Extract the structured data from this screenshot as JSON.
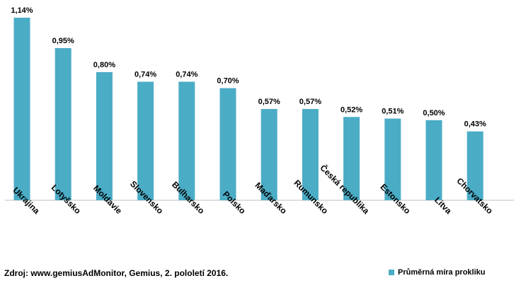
{
  "chart_data": {
    "type": "bar",
    "categories": [
      "Ukrajina",
      "Lotyšsko",
      "Moldavie",
      "Slovensko",
      "Bulharsko",
      "Polsko",
      "Maďarsko",
      "Rumunsko",
      "Česká republika",
      "Estonsko",
      "Litva",
      "Chorvatsko"
    ],
    "series": [
      {
        "name": "Průměrná míra prokliku",
        "values": [
          1.14,
          0.95,
          0.8,
          0.74,
          0.74,
          0.7,
          0.57,
          0.57,
          0.52,
          0.51,
          0.5,
          0.43
        ],
        "labels": [
          "1,14%",
          "0,95%",
          "0,80%",
          "0,74%",
          "0,74%",
          "0,70%",
          "0,57%",
          "0,57%",
          "0,52%",
          "0,51%",
          "0,50%",
          "0,43%"
        ]
      }
    ],
    "ylim": [
      0,
      1.14
    ],
    "grid": false,
    "legend_position": "bottom-right",
    "color": "#4bacc6"
  },
  "source_text": "Zdroj: www.gemiusAdMonitor, Gemius, 2. pololetí 2016.",
  "legend_label": "Průměrná míra prokliku"
}
